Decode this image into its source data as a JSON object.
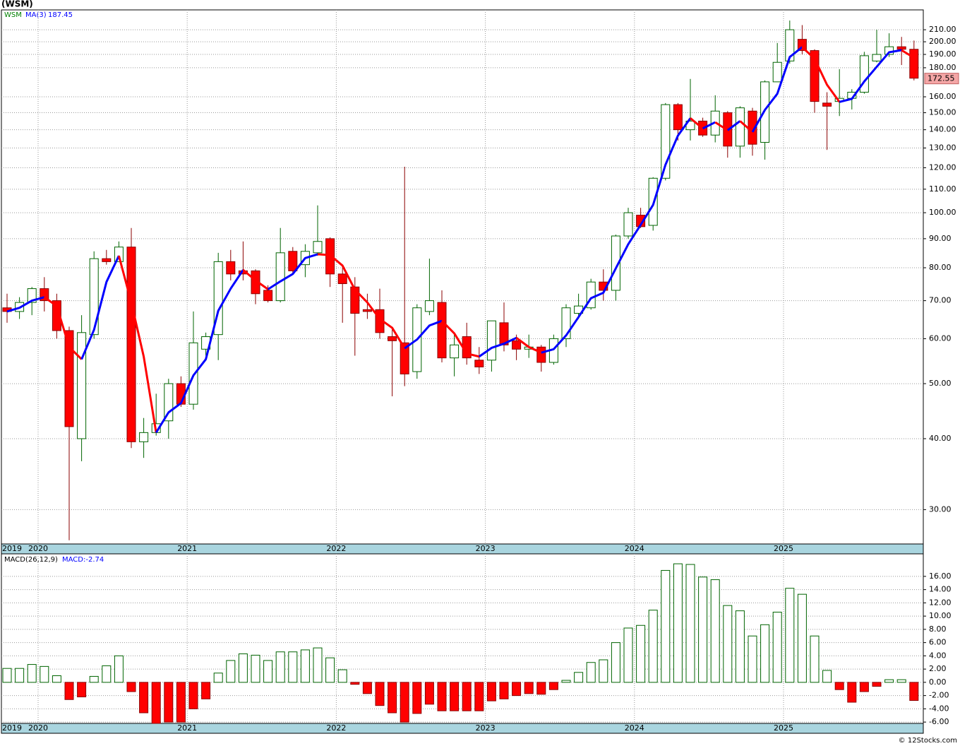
{
  "chart_data": [
    {
      "type": "candlestick",
      "title": "(WSM)",
      "categories": [
        "2019",
        null,
        null,
        "2020",
        null,
        null,
        null,
        null,
        null,
        null,
        null,
        null,
        null,
        null,
        null,
        "2021",
        null,
        null,
        null,
        null,
        null,
        null,
        null,
        null,
        null,
        null,
        null,
        "2022",
        null,
        null,
        null,
        null,
        null,
        null,
        null,
        null,
        null,
        null,
        null,
        "2023",
        null,
        null,
        null,
        null,
        null,
        null,
        null,
        null,
        null,
        null,
        null,
        "2024",
        null,
        null,
        null,
        null,
        null,
        null,
        null,
        null,
        null,
        null,
        null,
        "2025",
        null,
        null,
        null,
        null,
        null,
        null,
        null,
        null,
        null,
        null
      ],
      "series": [
        {
          "name": "WSM",
          "color": "#008000",
          "up_color": "#006400",
          "down_color": "#ff0000",
          "open": [
            68,
            67,
            69.5,
            73.5,
            70,
            62,
            40,
            61,
            83,
            82,
            87,
            39.5,
            41,
            43,
            50,
            46,
            57.5,
            61,
            82,
            79,
            79,
            73,
            70,
            85.5,
            81,
            85,
            90,
            78,
            74,
            67.5,
            67.5,
            60.5,
            59,
            52.5,
            67,
            69.5,
            55.5,
            60.5,
            55,
            55,
            64,
            59.5,
            57.5,
            58,
            54.5,
            60,
            66.5,
            68,
            75.5,
            73,
            91,
            99,
            95,
            115,
            155,
            140,
            145,
            137,
            150,
            131,
            151,
            133,
            170,
            185,
            202,
            193,
            156,
            157,
            159,
            163,
            185,
            190,
            196,
            194
          ],
          "high": [
            72,
            71,
            74,
            77,
            72,
            63,
            66,
            85.5,
            86,
            89,
            94,
            43.5,
            48,
            51,
            51.5,
            67,
            61.5,
            85,
            86,
            89,
            79.5,
            74.5,
            94,
            87,
            88,
            103,
            90.5,
            81,
            77,
            72,
            73.5,
            63,
            120.5,
            69,
            83,
            73,
            61,
            64,
            58,
            64.5,
            69.5,
            61,
            61,
            58.5,
            61,
            69,
            72,
            76.5,
            79.5,
            91.5,
            102,
            102,
            115.5,
            156,
            156,
            172,
            147,
            161,
            151,
            154,
            153,
            171,
            199,
            218,
            214,
            194,
            163,
            179,
            165,
            192,
            210,
            207,
            204,
            201
          ],
          "low": [
            64,
            65,
            66,
            67,
            60,
            26.5,
            36.5,
            60,
            81,
            82,
            38.5,
            37,
            40.5,
            40,
            45.5,
            45,
            56,
            55,
            76,
            76,
            69,
            69.5,
            69.5,
            78,
            77,
            84,
            74,
            64,
            56,
            65,
            60,
            47.5,
            49.5,
            51,
            66,
            54.5,
            51.5,
            54,
            52,
            52.5,
            57,
            55,
            55.5,
            52.5,
            54,
            58,
            65,
            67.5,
            70,
            70,
            90,
            94,
            93,
            114,
            134,
            134,
            136,
            133,
            125,
            125,
            126,
            124,
            170,
            183,
            190,
            150,
            129,
            148,
            152,
            162,
            184,
            188,
            182,
            171
          ],
          "close": [
            67,
            69.5,
            73.5,
            70,
            62,
            42,
            61.5,
            83,
            82,
            87,
            39.5,
            41,
            42.5,
            50,
            46,
            59,
            60.5,
            82,
            78,
            78,
            72,
            70,
            85,
            79,
            85.5,
            89,
            78,
            75,
            66.5,
            67,
            61.5,
            59.5,
            52,
            68,
            70,
            55.5,
            58.5,
            55.5,
            53.5,
            64.5,
            58.5,
            57.5,
            58,
            54.5,
            60,
            68,
            68.5,
            75.5,
            73,
            91,
            100,
            94.5,
            115,
            155,
            140,
            145,
            137,
            151,
            131,
            153,
            132,
            170,
            184,
            210,
            193,
            157,
            154,
            159,
            163,
            189,
            190,
            196,
            194,
            172.55
          ]
        },
        {
          "name": "MA(3)",
          "type": "line",
          "color": "#0000ff",
          "down_color": "#ff0000",
          "values": [
            67,
            68,
            70,
            71,
            68.5,
            58,
            55.2,
            62.2,
            75.5,
            84,
            69.5,
            55.8,
            41,
            44.5,
            46.2,
            51.7,
            55.2,
            67.2,
            73.5,
            79.3,
            76,
            73.3,
            75.7,
            78,
            83.2,
            84.5,
            84.2,
            80.7,
            73.2,
            69.5,
            65,
            62.7,
            57.7,
            59.8,
            63.3,
            64.5,
            61.3,
            56.5,
            55.8,
            57.8,
            58.8,
            60.2,
            58,
            56.7,
            57.5,
            60.8,
            65.5,
            70.7,
            72.3,
            79.8,
            88,
            95.2,
            103.2,
            121.5,
            136.7,
            146.7,
            140.7,
            144.3,
            139.7,
            145,
            138.7,
            151.7,
            162,
            188,
            195.7,
            186.7,
            168,
            156.7,
            158.7,
            170.3,
            180.7,
            191.7,
            193.3,
            187.45
          ]
        }
      ],
      "log_scale": true,
      "grid": true,
      "ylim": [
        26.1,
        227.6
      ],
      "yticks": [
        {
          "value": 30,
          "label": "30.00"
        },
        {
          "value": 40,
          "label": "40.00"
        },
        {
          "value": 50,
          "label": "50.00"
        },
        {
          "value": 60,
          "label": "60.00"
        },
        {
          "value": 70,
          "label": "70.00"
        },
        {
          "value": 80,
          "label": "80.00"
        },
        {
          "value": 90,
          "label": "90.00"
        },
        {
          "value": 100,
          "label": "100.00"
        },
        {
          "value": 110,
          "label": "110.00"
        },
        {
          "value": 120,
          "label": "120.00"
        },
        {
          "value": 130,
          "label": "130.00"
        },
        {
          "value": 140,
          "label": "140.00"
        },
        {
          "value": 150,
          "label": "150.00"
        },
        {
          "value": 160,
          "label": "160.00"
        },
        {
          "value": 180,
          "label": "180.00"
        },
        {
          "value": 190,
          "label": "190.00"
        },
        {
          "value": 200,
          "label": "200.00"
        },
        {
          "value": 210,
          "label": "210.00"
        }
      ]
    },
    {
      "type": "bar",
      "categories": [
        "2019",
        null,
        null,
        "2020",
        null,
        null,
        null,
        null,
        null,
        null,
        null,
        null,
        null,
        null,
        null,
        "2021",
        null,
        null,
        null,
        null,
        null,
        null,
        null,
        null,
        null,
        null,
        null,
        "2022",
        null,
        null,
        null,
        null,
        null,
        null,
        null,
        null,
        null,
        null,
        null,
        "2023",
        null,
        null,
        null,
        null,
        null,
        null,
        null,
        null,
        null,
        null,
        null,
        "2024",
        null,
        null,
        null,
        null,
        null,
        null,
        null,
        null,
        null,
        null,
        null,
        "2025",
        null,
        null,
        null,
        null,
        null,
        null,
        null,
        null,
        null,
        null
      ],
      "series": [
        {
          "name": "MACD(26,12,9)",
          "value_text": "MACD:-2.74",
          "up_color": "#006400",
          "down_color": "#ff0000",
          "values": [
            2.1,
            2.1,
            2.7,
            2.4,
            1,
            -2.6,
            -2.2,
            0.9,
            2.5,
            4,
            -1.4,
            -4.6,
            -6.2,
            -6,
            -6,
            -4,
            -2.5,
            1.4,
            3.3,
            4.3,
            4.1,
            3.3,
            4.6,
            4.6,
            4.9,
            5.2,
            3.7,
            1.9,
            -0.3,
            -1.7,
            -3.5,
            -4.6,
            -6,
            -4.7,
            -3.3,
            -4.3,
            -4.3,
            -4.3,
            -4.3,
            -2.8,
            -2.5,
            -2,
            -1.7,
            -1.8,
            -1.1,
            0.3,
            1.5,
            3,
            3.4,
            6,
            8.2,
            8.6,
            10.9,
            16.9,
            17.9,
            17.8,
            15.9,
            15.5,
            11.6,
            10.8,
            7,
            8.7,
            10.6,
            14.2,
            13.3,
            7,
            1.8,
            -1.1,
            -3,
            -1.4,
            -0.6,
            0.4,
            0.4,
            -2.74
          ]
        }
      ],
      "grid": true,
      "ylim": [
        -6.2,
        19.4
      ],
      "yticks": [
        {
          "value": -6,
          "label": "-6.00"
        },
        {
          "value": -4,
          "label": "-4.00"
        },
        {
          "value": -2,
          "label": "-2.00"
        },
        {
          "value": 0,
          "label": "0.00"
        },
        {
          "value": 2,
          "label": "2.00"
        },
        {
          "value": 4,
          "label": "4.00"
        },
        {
          "value": 6,
          "label": "6.00"
        },
        {
          "value": 8,
          "label": "8.00"
        },
        {
          "value": 10,
          "label": "10.00"
        },
        {
          "value": 12,
          "label": "12.00"
        },
        {
          "value": 14,
          "label": "14.00"
        },
        {
          "value": 16,
          "label": "16.00"
        }
      ]
    }
  ],
  "footer": "© 12Stocks.com"
}
